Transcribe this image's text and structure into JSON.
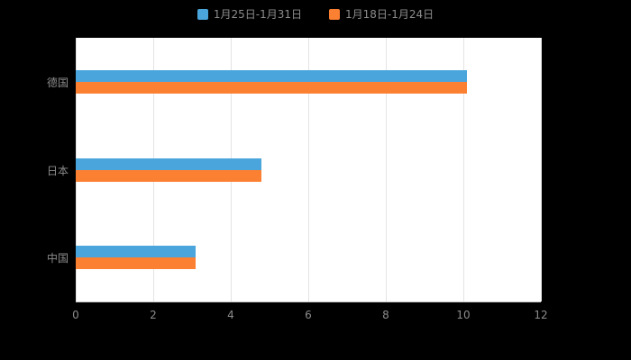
{
  "legend": {
    "items": [
      {
        "label": "1月25日-1月31日",
        "color": "#4aa5dc"
      },
      {
        "label": "1月18日-1月24日",
        "color": "#fc8032"
      }
    ]
  },
  "chart_data": {
    "type": "bar",
    "orientation": "horizontal",
    "title": "",
    "xlabel": "",
    "ylabel": "",
    "categories": [
      "德国",
      "日本",
      "中国"
    ],
    "series": [
      {
        "name": "1月25日-1月31日",
        "color": "#4aa5dc",
        "values": [
          10.1,
          4.8,
          3.1
        ]
      },
      {
        "name": "1月18日-1月24日",
        "color": "#fc8032",
        "values": [
          10.1,
          4.8,
          3.1
        ]
      }
    ],
    "xlim": [
      0,
      12
    ],
    "xticks": [
      0,
      2,
      4,
      6,
      8,
      10,
      12
    ],
    "grid": true,
    "legend_position": "top"
  },
  "colors": {
    "background": "#000000",
    "plot_background": "#ffffff",
    "gridline": "#e4e4e4",
    "axis_line": "#c9c9c9",
    "label_text": "#8c8c8c"
  }
}
